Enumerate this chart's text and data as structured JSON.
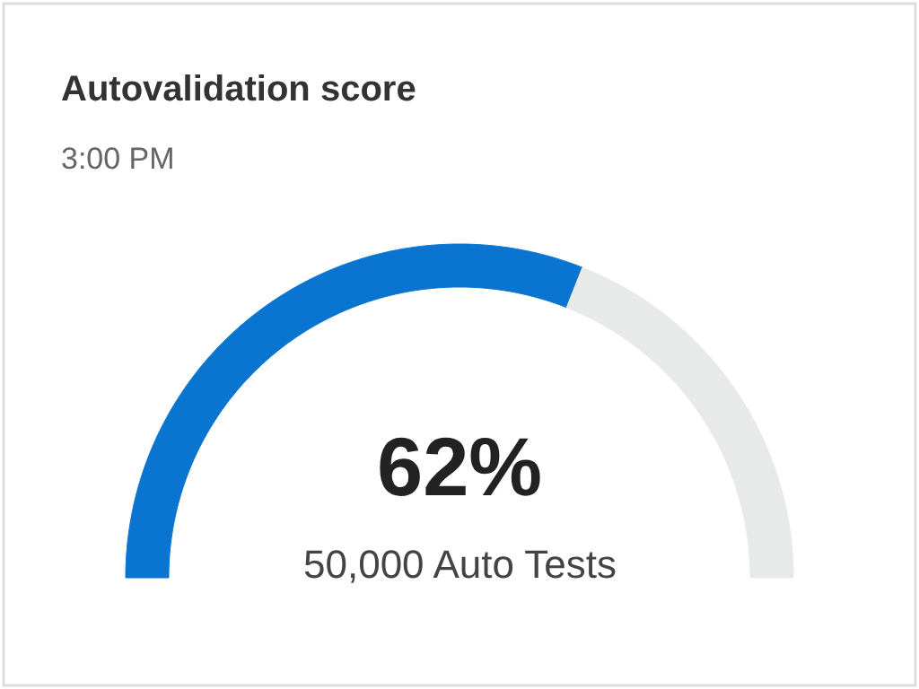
{
  "chart_data": {
    "type": "donut",
    "title": "Autovalidation score",
    "subtitle": "3:00 PM",
    "categories": [
      null,
      null
    ],
    "values": [
      62,
      38
    ],
    "colors": [
      "#0a75d0",
      "#e8eaea"
    ],
    "value_labels": [
      "62%",
      null
    ],
    "annotations": [
      "50,000 Auto Tests"
    ]
  }
}
